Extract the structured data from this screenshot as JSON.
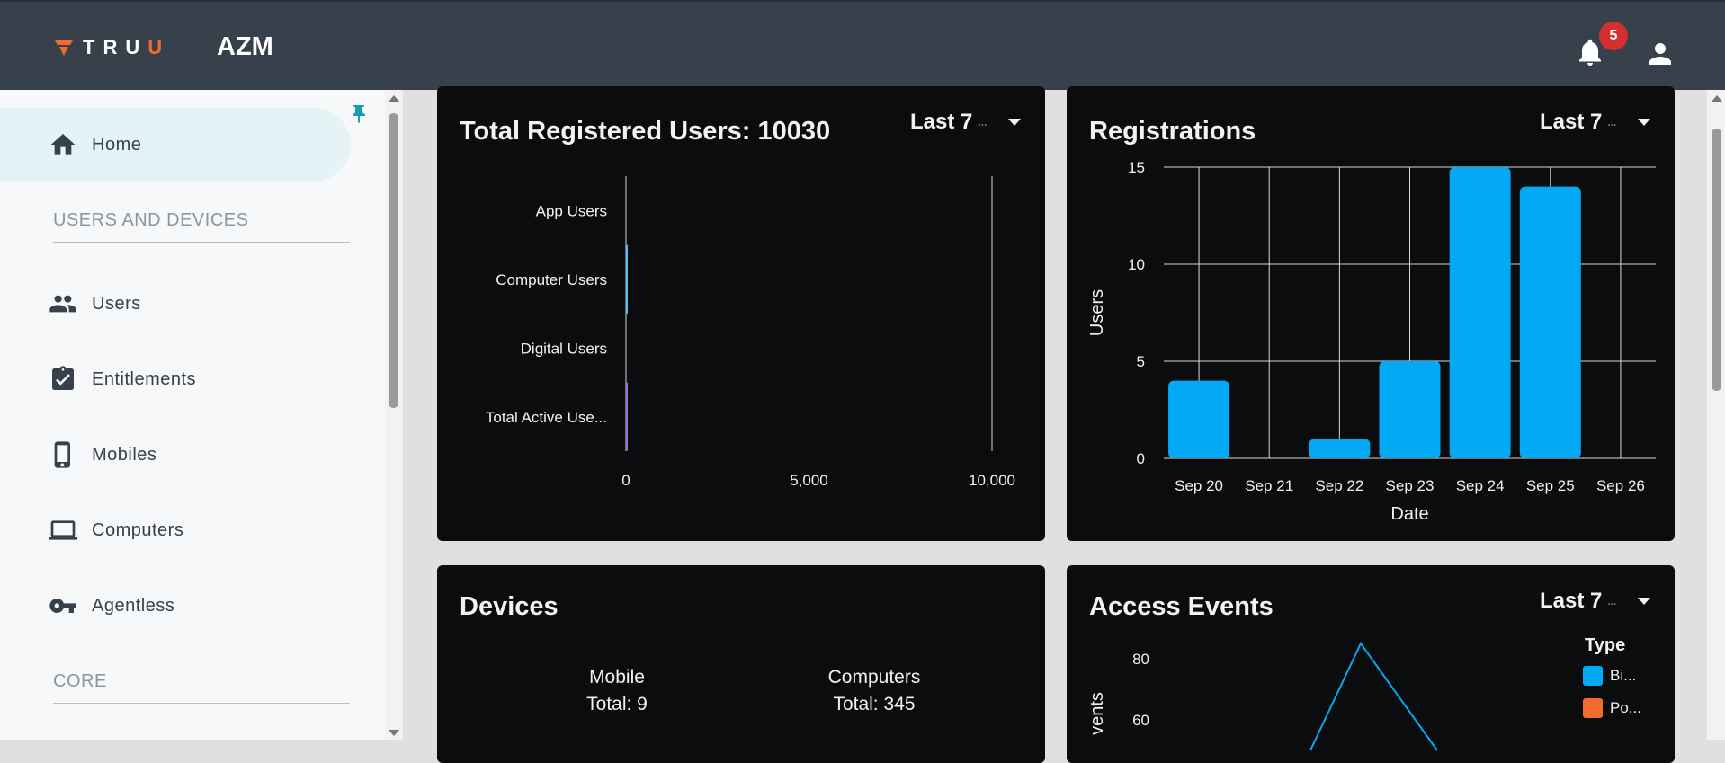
{
  "header": {
    "logo_text_main": "TRU",
    "logo_text_accent": "U",
    "app_title": "AZM",
    "notification_count": "5",
    "brand_color": "#f26a2c"
  },
  "sidebar": {
    "items": [
      {
        "label": "Home",
        "icon": "home-icon",
        "active": true
      },
      {
        "label": "Users",
        "icon": "users-icon"
      },
      {
        "label": "Entitlements",
        "icon": "clipboard-check-icon"
      },
      {
        "label": "Mobiles",
        "icon": "mobile-icon"
      },
      {
        "label": "Computers",
        "icon": "laptop-icon"
      },
      {
        "label": "Agentless",
        "icon": "key-icon"
      }
    ],
    "sections": [
      "USERS AND DEVICES",
      "CORE"
    ]
  },
  "cards": {
    "total_users": {
      "title": "Total Registered Users: 10030",
      "range": "Last 7",
      "range_more": "..."
    },
    "registrations": {
      "title": "Registrations",
      "range": "Last 7",
      "range_more": "..."
    },
    "devices": {
      "title": "Devices",
      "mobile_label": "Mobile",
      "mobile_total": "Total: 9",
      "computers_label": "Computers",
      "computers_total": "Total: 345"
    },
    "access_events": {
      "title": "Access Events",
      "range": "Last 7",
      "range_more": "...",
      "legend_title": "Type",
      "legend_items": [
        "Bi...",
        "Po..."
      ]
    }
  },
  "chart_data": [
    {
      "type": "bar",
      "orientation": "horizontal",
      "categories": [
        "App Users",
        "Computer Users",
        "Digital Users",
        "Total Active Use..."
      ],
      "values": [
        0,
        5,
        0,
        5
      ],
      "xticks": [
        "0",
        "5,000",
        "10,000"
      ],
      "xlim": [
        0,
        10000
      ],
      "colors": [
        "#4fc3f7",
        "#4fc3f7",
        "#4fc3f7",
        "#9c6ade"
      ],
      "grid": true
    },
    {
      "type": "bar",
      "categories": [
        "Sep 20",
        "Sep 21",
        "Sep 22",
        "Sep 23",
        "Sep 24",
        "Sep 25",
        "Sep 26"
      ],
      "values": [
        4,
        0,
        1,
        5,
        15,
        14,
        0
      ],
      "xlabel": "Date",
      "ylabel": "Users",
      "ylim": [
        0,
        15
      ],
      "yticks": [
        "0",
        "5",
        "10",
        "15"
      ],
      "color": "#03a9f4",
      "grid": true
    },
    {
      "type": "line",
      "ylabel_visible": "vents",
      "yticks": [
        "60",
        "80"
      ],
      "series": [
        {
          "name": "Bi...",
          "color": "#03a9f4",
          "values": [
            50,
            85,
            50
          ]
        },
        {
          "name": "Po...",
          "color": "#f26a2c",
          "values": []
        }
      ],
      "legend": "top-right"
    }
  ]
}
